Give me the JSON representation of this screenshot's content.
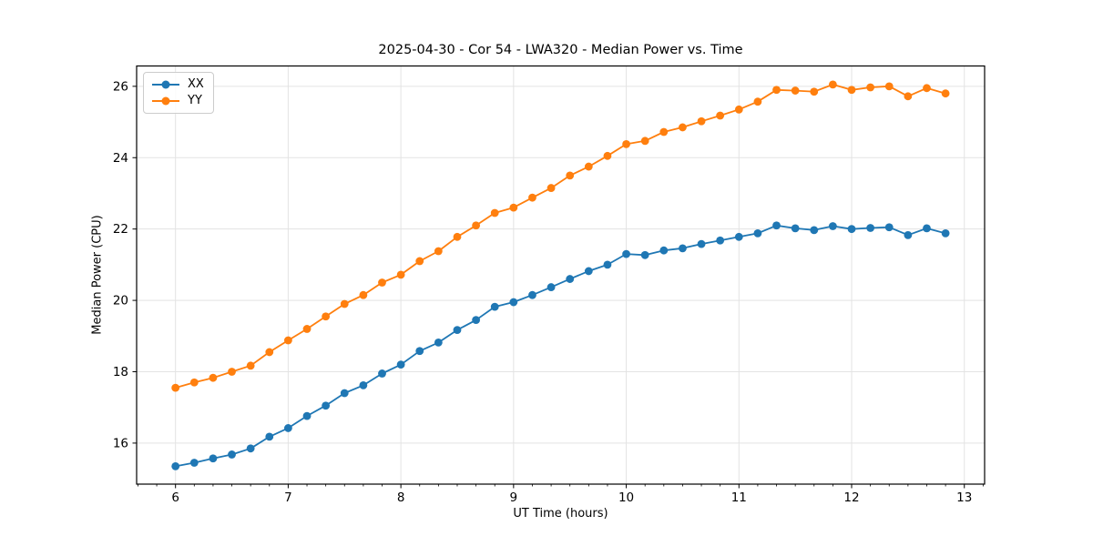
{
  "figure": {
    "background_color": "#ffffff",
    "text_color": "#000000"
  },
  "chart_data": {
    "type": "line",
    "title": "2025-04-30 - Cor 54 - LWA320 - Median Power vs. Time",
    "xlabel": "UT Time (hours)",
    "ylabel": "Median Power (CPU)",
    "xlim": [
      5.655,
      13.18
    ],
    "ylim": [
      14.85,
      26.57
    ],
    "xticks": [
      6,
      7,
      8,
      9,
      10,
      11,
      12,
      13
    ],
    "yticks": [
      16,
      18,
      20,
      22,
      24,
      26
    ],
    "x_minor_tick_step": 0.166667,
    "grid": true,
    "grid_color": "#e3e3e3",
    "spine_color": "#000000",
    "legend": {
      "position": "upper-left",
      "entries": [
        "XX",
        "YY"
      ]
    },
    "x": [
      6,
      6.1667,
      6.3333,
      6.5,
      6.6667,
      6.8333,
      7,
      7.1667,
      7.3333,
      7.5,
      7.6667,
      7.8333,
      8,
      8.1667,
      8.3333,
      8.5,
      8.6667,
      8.8333,
      9,
      9.1667,
      9.3333,
      9.5,
      9.6667,
      9.8333,
      10,
      10.1667,
      10.3333,
      10.5,
      10.6667,
      10.8333,
      11,
      11.1667,
      11.3333,
      11.5,
      11.6667,
      11.8333,
      12,
      12.1667,
      12.3333,
      12.5,
      12.6667,
      12.8333
    ],
    "series": [
      {
        "name": "XX",
        "color": "#1f77b4",
        "values": [
          15.35,
          15.45,
          15.57,
          15.68,
          15.85,
          16.18,
          16.42,
          16.76,
          17.05,
          17.4,
          17.62,
          17.95,
          18.2,
          18.58,
          18.82,
          19.17,
          19.45,
          19.82,
          19.95,
          20.15,
          20.37,
          20.6,
          20.82,
          21.0,
          21.3,
          21.27,
          21.4,
          21.46,
          21.58,
          21.68,
          21.78,
          21.88,
          22.1,
          22.02,
          21.97,
          22.08,
          22.0,
          22.03,
          22.05,
          21.83,
          22.02,
          21.88
        ]
      },
      {
        "name": "YY",
        "color": "#ff7f0e",
        "values": [
          17.55,
          17.7,
          17.83,
          18.0,
          18.17,
          18.55,
          18.88,
          19.2,
          19.55,
          19.9,
          20.15,
          20.5,
          20.72,
          21.1,
          21.38,
          21.78,
          22.1,
          22.45,
          22.6,
          22.88,
          23.15,
          23.5,
          23.75,
          24.05,
          24.38,
          24.47,
          24.72,
          24.85,
          25.02,
          25.18,
          25.35,
          25.57,
          25.9,
          25.88,
          25.85,
          26.05,
          25.9,
          25.97,
          26.0,
          25.72,
          25.95,
          25.8
        ]
      }
    ]
  }
}
